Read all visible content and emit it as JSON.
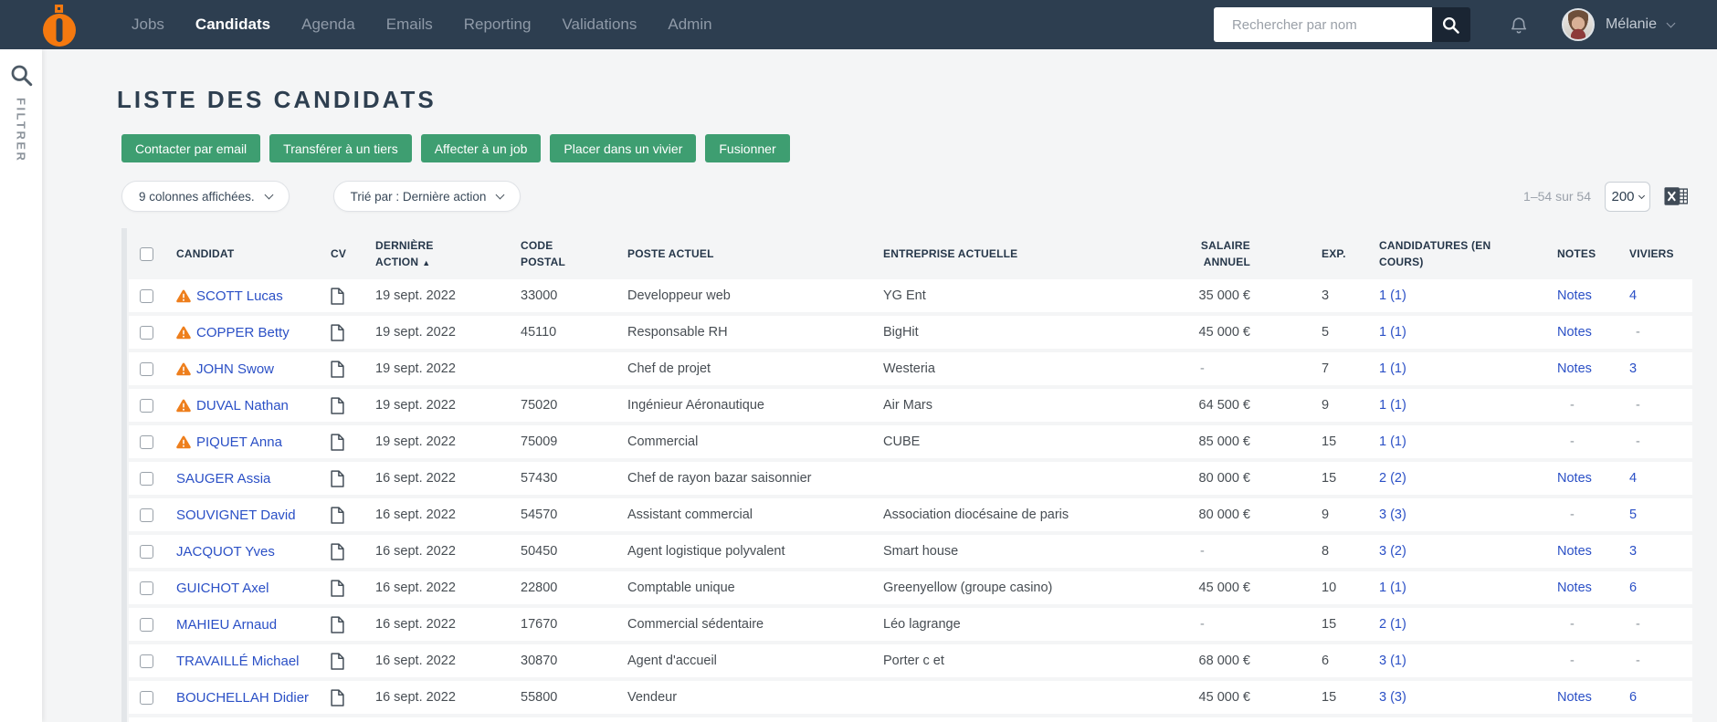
{
  "colors": {
    "navbar_bg": "#2d3e50",
    "accent_green": "#3e9e71",
    "link_blue": "#2b50c6",
    "warning_orange": "#ee7f1d"
  },
  "navbar": {
    "items": [
      {
        "label": "Jobs",
        "active": false
      },
      {
        "label": "Candidats",
        "active": true
      },
      {
        "label": "Agenda",
        "active": false
      },
      {
        "label": "Emails",
        "active": false
      },
      {
        "label": "Reporting",
        "active": false
      },
      {
        "label": "Validations",
        "active": false
      },
      {
        "label": "Admin",
        "active": false
      }
    ],
    "search_placeholder": "Rechercher par nom",
    "user_name": "Mélanie"
  },
  "filter_rail": {
    "label": "FILTRER"
  },
  "page": {
    "title": "LISTE DES CANDIDATS"
  },
  "actions": [
    "Contacter par email",
    "Transférer à un tiers",
    "Affecter à un job",
    "Placer dans un vivier",
    "Fusionner"
  ],
  "toolbar": {
    "columns_label": "9 colonnes affichées.",
    "sort_label": "Trié par : Dernière action",
    "range": "1–54 sur 54",
    "page_size": "200"
  },
  "table": {
    "columns": [
      {
        "key": "check",
        "lines": []
      },
      {
        "key": "candidat",
        "lines": [
          "CANDIDAT"
        ]
      },
      {
        "key": "cv",
        "lines": [
          "CV"
        ]
      },
      {
        "key": "action",
        "lines": [
          "DERNIÈRE",
          "ACTION"
        ],
        "sort": "▲"
      },
      {
        "key": "code",
        "lines": [
          "CODE",
          "POSTAL"
        ]
      },
      {
        "key": "poste",
        "lines": [
          "POSTE ACTUEL"
        ]
      },
      {
        "key": "entreprise",
        "lines": [
          "ENTREPRISE ACTUELLE"
        ]
      },
      {
        "key": "salaire",
        "lines": [
          "SALAIRE",
          "ANNUEL"
        ]
      },
      {
        "key": "exp",
        "lines": [
          "EXP."
        ]
      },
      {
        "key": "candidatures",
        "lines": [
          "CANDIDATURES (EN",
          "COURS)"
        ]
      },
      {
        "key": "notes",
        "lines": [
          "NOTES"
        ]
      },
      {
        "key": "viviers",
        "lines": [
          "VIVIERS"
        ]
      }
    ],
    "rows": [
      {
        "warning": true,
        "name": "SCOTT Lucas",
        "date": "19 sept. 2022",
        "code": "33000",
        "poste": "Developpeur web",
        "entreprise": "YG Ent",
        "salaire": "35 000 €",
        "exp": "3",
        "candidatures": "1 (1)",
        "notes": "Notes",
        "viviers": "4"
      },
      {
        "warning": true,
        "name": "COPPER Betty",
        "date": "19 sept. 2022",
        "code": "45110",
        "poste": "Responsable RH",
        "entreprise": "BigHit",
        "salaire": "45 000 €",
        "exp": "5",
        "candidatures": "1 (1)",
        "notes": "Notes",
        "viviers": "-"
      },
      {
        "warning": true,
        "name": "JOHN Swow",
        "date": "19 sept. 2022",
        "code": "",
        "poste": "Chef de projet",
        "entreprise": "Westeria",
        "salaire": "-",
        "exp": "7",
        "candidatures": "1 (1)",
        "notes": "Notes",
        "viviers": "3"
      },
      {
        "warning": true,
        "name": "DUVAL Nathan",
        "date": "19 sept. 2022",
        "code": "75020",
        "poste": "Ingénieur Aéronautique",
        "entreprise": "Air Mars",
        "salaire": "64 500 €",
        "exp": "9",
        "candidatures": "1 (1)",
        "notes": "-",
        "viviers": "-"
      },
      {
        "warning": true,
        "name": "PIQUET Anna",
        "date": "19 sept. 2022",
        "code": "75009",
        "poste": "Commercial",
        "entreprise": "CUBE",
        "salaire": "85 000 €",
        "exp": "15",
        "candidatures": "1 (1)",
        "notes": "-",
        "viviers": "-"
      },
      {
        "warning": false,
        "name": "SAUGER Assia",
        "date": "16 sept. 2022",
        "code": "57430",
        "poste": "Chef de rayon bazar saisonnier",
        "entreprise": "",
        "salaire": "80 000 €",
        "exp": "15",
        "candidatures": "2 (2)",
        "notes": "Notes",
        "viviers": "4"
      },
      {
        "warning": false,
        "name": "SOUVIGNET David",
        "date": "16 sept. 2022",
        "code": "54570",
        "poste": "Assistant commercial",
        "entreprise": "Association diocésaine de paris",
        "salaire": "80 000 €",
        "exp": "9",
        "candidatures": "3 (3)",
        "notes": "-",
        "viviers": "5"
      },
      {
        "warning": false,
        "name": "JACQUOT Yves",
        "date": "16 sept. 2022",
        "code": "50450",
        "poste": "Agent logistique polyvalent",
        "entreprise": "Smart house",
        "salaire": "-",
        "exp": "8",
        "candidatures": "3 (2)",
        "notes": "Notes",
        "viviers": "3"
      },
      {
        "warning": false,
        "name": "GUICHOT Axel",
        "date": "16 sept. 2022",
        "code": "22800",
        "poste": "Comptable unique",
        "entreprise": "Greenyellow (groupe casino)",
        "salaire": "45 000 €",
        "exp": "10",
        "candidatures": "1 (1)",
        "notes": "Notes",
        "viviers": "6"
      },
      {
        "warning": false,
        "name": "MAHIEU Arnaud",
        "date": "16 sept. 2022",
        "code": "17670",
        "poste": "Commercial sédentaire",
        "entreprise": "Léo lagrange",
        "salaire": "-",
        "exp": "15",
        "candidatures": "2 (1)",
        "notes": "-",
        "viviers": "-"
      },
      {
        "warning": false,
        "name": "TRAVAILLÉ Michael",
        "date": "16 sept. 2022",
        "code": "30870",
        "poste": "Agent d'accueil",
        "entreprise": "Porter c et",
        "salaire": "68 000 €",
        "exp": "6",
        "candidatures": "3 (1)",
        "notes": "-",
        "viviers": "-"
      },
      {
        "warning": false,
        "name": "BOUCHELLAH Didier",
        "date": "16 sept. 2022",
        "code": "55800",
        "poste": "Vendeur",
        "entreprise": "",
        "salaire": "45 000 €",
        "exp": "15",
        "candidatures": "3 (3)",
        "notes": "Notes",
        "viviers": "6"
      }
    ]
  }
}
